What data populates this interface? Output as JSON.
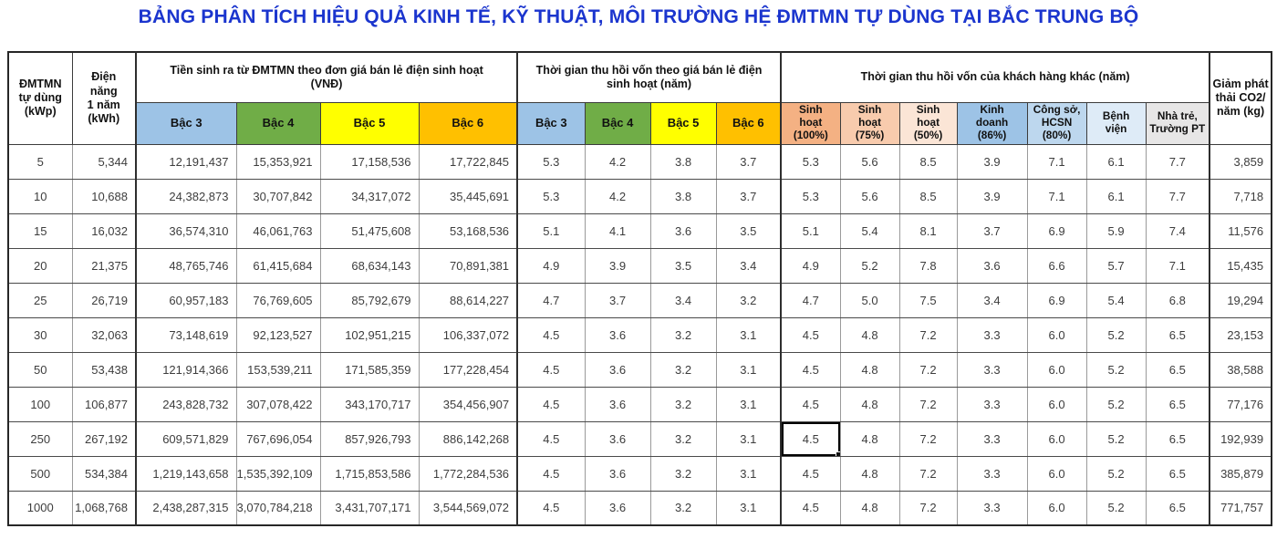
{
  "title": {
    "text": "BẢNG PHÂN TÍCH HIỆU QUẢ KINH TẾ, KỸ THUẬT, MÔI TRƯỜNG HỆ ĐMTMN TỰ DÙNG TẠI BẮC TRUNG BỘ",
    "color": "#1B35CE"
  },
  "table": {
    "header": {
      "kwp": "ĐMTMN\ntự dùng\n(kWp)",
      "kwh": "Điện\nnăng\n1 năm\n(kWh)",
      "group_money": "Tiền sinh ra từ ĐMTMN theo đơn giá bán lẻ điện sinh hoạt\n(VNĐ)",
      "group_payback_residential": "Thời gian thu hồi vốn theo giá bán lẻ điện\nsinh hoạt (năm)",
      "group_payback_other": "Thời gian thu hồi vốn của khách hàng khác (năm)",
      "co2": "Giảm phát\nthải CO2/\nnăm (kg)",
      "subcolumns": [
        {
          "label": "Bậc 3",
          "color": "#9DC3E6"
        },
        {
          "label": "Bậc 4",
          "color": "#70AD47"
        },
        {
          "label": "Bậc 5",
          "color": "#FFFF00"
        },
        {
          "label": "Bậc 6",
          "color": "#FFC000"
        },
        {
          "label": "Bậc 3",
          "color": "#9DC3E6"
        },
        {
          "label": "Bậc 4",
          "color": "#70AD47"
        },
        {
          "label": "Bậc 5",
          "color": "#FFFF00"
        },
        {
          "label": "Bậc 6",
          "color": "#FFC000"
        },
        {
          "label": "Sinh\nhoạt\n(100%)",
          "color": "#F4B183"
        },
        {
          "label": "Sinh\nhoạt\n(75%)",
          "color": "#F8CBAD"
        },
        {
          "label": "Sinh\nhoạt\n(50%)",
          "color": "#FBE5D6"
        },
        {
          "label": "Kinh\ndoanh\n(86%)",
          "color": "#9DC3E6"
        },
        {
          "label": "Công sở,\nHCSN (80%)",
          "color": "#BDD7EE"
        },
        {
          "label": "Bệnh\nviện",
          "color": "#DEEBF7"
        },
        {
          "label": "Nhà trẻ,\nTrường PT",
          "color": "#E7E6E6"
        }
      ]
    },
    "rows": [
      [
        "5",
        "5,344",
        "12,191,437",
        "15,353,921",
        "17,158,536",
        "17,722,845",
        "5.3",
        "4.2",
        "3.8",
        "3.7",
        "5.3",
        "5.6",
        "8.5",
        "3.9",
        "7.1",
        "6.1",
        "7.7",
        "3,859"
      ],
      [
        "10",
        "10,688",
        "24,382,873",
        "30,707,842",
        "34,317,072",
        "35,445,691",
        "5.3",
        "4.2",
        "3.8",
        "3.7",
        "5.3",
        "5.6",
        "8.5",
        "3.9",
        "7.1",
        "6.1",
        "7.7",
        "7,718"
      ],
      [
        "15",
        "16,032",
        "36,574,310",
        "46,061,763",
        "51,475,608",
        "53,168,536",
        "5.1",
        "4.1",
        "3.6",
        "3.5",
        "5.1",
        "5.4",
        "8.1",
        "3.7",
        "6.9",
        "5.9",
        "7.4",
        "11,576"
      ],
      [
        "20",
        "21,375",
        "48,765,746",
        "61,415,684",
        "68,634,143",
        "70,891,381",
        "4.9",
        "3.9",
        "3.5",
        "3.4",
        "4.9",
        "5.2",
        "7.8",
        "3.6",
        "6.6",
        "5.7",
        "7.1",
        "15,435"
      ],
      [
        "25",
        "26,719",
        "60,957,183",
        "76,769,605",
        "85,792,679",
        "88,614,227",
        "4.7",
        "3.7",
        "3.4",
        "3.2",
        "4.7",
        "5.0",
        "7.5",
        "3.4",
        "6.9",
        "5.4",
        "6.8",
        "19,294"
      ],
      [
        "30",
        "32,063",
        "73,148,619",
        "92,123,527",
        "102,951,215",
        "106,337,072",
        "4.5",
        "3.6",
        "3.2",
        "3.1",
        "4.5",
        "4.8",
        "7.2",
        "3.3",
        "6.0",
        "5.2",
        "6.5",
        "23,153"
      ],
      [
        "50",
        "53,438",
        "121,914,366",
        "153,539,211",
        "171,585,359",
        "177,228,454",
        "4.5",
        "3.6",
        "3.2",
        "3.1",
        "4.5",
        "4.8",
        "7.2",
        "3.3",
        "6.0",
        "5.2",
        "6.5",
        "38,588"
      ],
      [
        "100",
        "106,877",
        "243,828,732",
        "307,078,422",
        "343,170,717",
        "354,456,907",
        "4.5",
        "3.6",
        "3.2",
        "3.1",
        "4.5",
        "4.8",
        "7.2",
        "3.3",
        "6.0",
        "5.2",
        "6.5",
        "77,176"
      ],
      [
        "250",
        "267,192",
        "609,571,829",
        "767,696,054",
        "857,926,793",
        "886,142,268",
        "4.5",
        "3.6",
        "3.2",
        "3.1",
        "4.5",
        "4.8",
        "7.2",
        "3.3",
        "6.0",
        "5.2",
        "6.5",
        "192,939"
      ],
      [
        "500",
        "534,384",
        "1,219,143,658",
        "1,535,392,109",
        "1,715,853,586",
        "1,772,284,536",
        "4.5",
        "3.6",
        "3.2",
        "3.1",
        "4.5",
        "4.8",
        "7.2",
        "3.3",
        "6.0",
        "5.2",
        "6.5",
        "385,879"
      ],
      [
        "1000",
        "1,068,768",
        "2,438,287,315",
        "3,070,784,218",
        "3,431,707,171",
        "3,544,569,072",
        "4.5",
        "3.6",
        "3.2",
        "3.1",
        "4.5",
        "4.8",
        "7.2",
        "3.3",
        "6.0",
        "5.2",
        "6.5",
        "771,757"
      ]
    ],
    "selection": {
      "row_index": 8,
      "col_index": 10
    }
  }
}
